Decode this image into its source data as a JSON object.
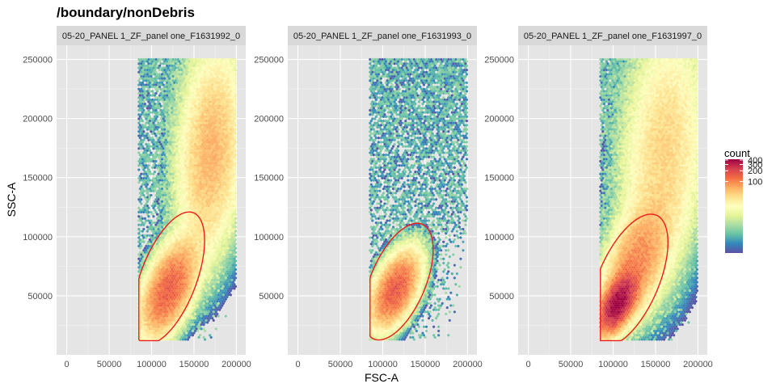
{
  "title": "/boundary/nonDebris",
  "x_axis_title": "FSC-A",
  "y_axis_title": "SSC-A",
  "colors": {
    "panel_bg": "#e5e5e5",
    "strip_bg": "#d9d9d9",
    "grid": "#ffffff",
    "gate": "#ee1c1c",
    "scale": [
      "#5e4fa2",
      "#3288bd",
      "#66c2a5",
      "#abdda4",
      "#e6f598",
      "#ffffbf",
      "#fee08b",
      "#fdae61",
      "#f46d43",
      "#d53e4f",
      "#9e0142"
    ]
  },
  "chart_data": [
    {
      "type": "heatmap",
      "strip_label": "05-20_PANEL 1_ZF_panel one_F1631992_0",
      "xlabel": "FSC-A",
      "ylabel": "SSC-A",
      "xlim": [
        -12000,
        211000
      ],
      "ylim": [
        0,
        262000
      ],
      "xticks": [
        0,
        50000,
        100000,
        150000,
        200000
      ],
      "xtick_labels": [
        "0",
        "50000",
        "100000",
        "150000",
        "200000"
      ],
      "yticks": [
        50000,
        100000,
        150000,
        200000,
        250000
      ],
      "ytick_labels": [
        "50000",
        "100000",
        "150000",
        "200000",
        "250000"
      ],
      "events_x_range": [
        85000,
        200000
      ],
      "events_y_range": [
        12000,
        250000
      ],
      "dense_clusters": [
        {
          "x": 120000,
          "y": 55000,
          "peak_count": 150,
          "sx": 18000,
          "sy": 22000,
          "rho": 0.5
        },
        {
          "x": 170000,
          "y": 170000,
          "peak_count": 60,
          "sx": 22000,
          "sy": 50000,
          "rho": 0.2
        }
      ],
      "gate": {
        "center": [
          120000,
          65000
        ],
        "semi_major": 63000,
        "semi_minor": 31000,
        "angle_deg": 58,
        "clip_x_min": 85000,
        "clip_y_min": 12000
      }
    },
    {
      "type": "heatmap",
      "strip_label": "05-20_PANEL 1_ZF_panel one_F1631993_0",
      "xlabel": "FSC-A",
      "ylabel": "SSC-A",
      "xlim": [
        -12000,
        211000
      ],
      "ylim": [
        0,
        262000
      ],
      "xticks": [
        0,
        50000,
        100000,
        150000,
        200000
      ],
      "xtick_labels": [
        "0",
        "50000",
        "100000",
        "150000",
        "200000"
      ],
      "yticks": [
        50000,
        100000,
        150000,
        200000,
        250000
      ],
      "ytick_labels": [
        "50000",
        "100000",
        "150000",
        "200000",
        "250000"
      ],
      "events_x_range": [
        85000,
        200000
      ],
      "events_y_range": [
        12000,
        250000
      ],
      "dense_clusters": [
        {
          "x": 115000,
          "y": 55000,
          "peak_count": 160,
          "sx": 16000,
          "sy": 18000,
          "rho": 0.5
        }
      ],
      "gate": {
        "center": [
          118000,
          62000
        ],
        "semi_major": 57000,
        "semi_minor": 30000,
        "angle_deg": 54,
        "clip_x_min": 85000,
        "clip_y_min": 12000
      }
    },
    {
      "type": "heatmap",
      "strip_label": "05-20_PANEL 1_ZF_panel one_F1631997_0",
      "xlabel": "FSC-A",
      "ylabel": "SSC-A",
      "xlim": [
        -12000,
        211000
      ],
      "ylim": [
        0,
        262000
      ],
      "xticks": [
        0,
        50000,
        100000,
        150000,
        200000
      ],
      "xtick_labels": [
        "0",
        "50000",
        "100000",
        "150000",
        "200000"
      ],
      "yticks": [
        50000,
        100000,
        150000,
        200000,
        250000
      ],
      "ytick_labels": [
        "50000",
        "100000",
        "150000",
        "200000",
        "250000"
      ],
      "events_x_range": [
        85000,
        200000
      ],
      "events_y_range": [
        12000,
        250000
      ],
      "dense_clusters": [
        {
          "x": 105000,
          "y": 43000,
          "peak_count": 400,
          "sx": 12000,
          "sy": 13000,
          "rho": 0.55
        },
        {
          "x": 125000,
          "y": 75000,
          "peak_count": 90,
          "sx": 22000,
          "sy": 28000,
          "rho": 0.5
        },
        {
          "x": 160000,
          "y": 170000,
          "peak_count": 40,
          "sx": 28000,
          "sy": 60000,
          "rho": 0.2
        }
      ],
      "gate": {
        "center": [
          118000,
          63000
        ],
        "semi_major": 65000,
        "semi_minor": 33000,
        "angle_deg": 54,
        "clip_x_min": 85000,
        "clip_y_min": 12000
      }
    }
  ],
  "legend": {
    "title": "count",
    "scale": "log",
    "range": [
      1,
      420
    ],
    "ticks": [
      100,
      200,
      300,
      400
    ],
    "tick_labels": [
      "100",
      "200",
      "300",
      "400"
    ]
  }
}
